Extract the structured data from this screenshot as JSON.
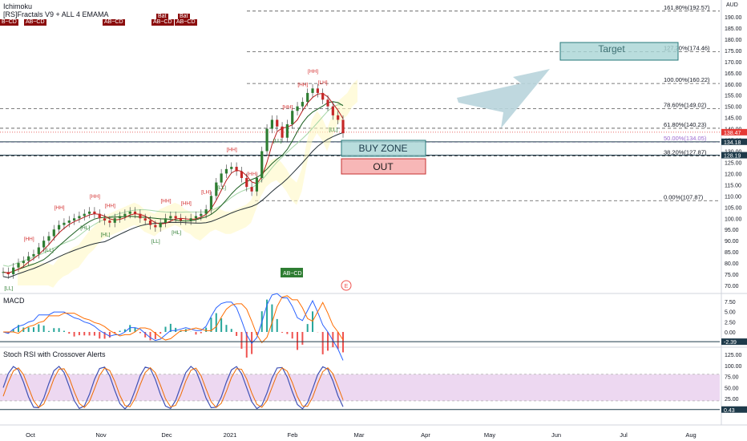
{
  "indicators": {
    "ichimoku": "Ichimoku",
    "fractals": "[RS]Fractals V9 + ALL 4 EMAMA",
    "macd": "MACD",
    "stoch": "Stoch RSI with Crossover Alerts"
  },
  "currency": "AUD",
  "pattern_tags": [
    "B~CD",
    "AB~CD",
    "AB~CD",
    "AB~CD",
    "AB~CD"
  ],
  "bat_tags": [
    "Bat",
    "Bat"
  ],
  "zones": {
    "target": "Target",
    "buy": "BUY ZONE",
    "out": "OUT"
  },
  "colors": {
    "fib_line": "#555555",
    "zone_teal": "#a8d4d4",
    "zone_teal_border": "#26787a",
    "out_fill": "#f7b7b7",
    "out_border": "#c53030",
    "arrow": "#b8d4dc",
    "candle_up": "#26a69a",
    "candle_down": "#ef5350",
    "price_tag": "#e53935",
    "stoch_band": "#e1bee7",
    "macd_line": "#2962ff",
    "signal_line": "#ff6d00"
  },
  "chart_data": [
    {
      "type": "line",
      "name": "price",
      "ylim": [
        68,
        195
      ],
      "yticks": [
        "70.00",
        "75.00",
        "80.00",
        "85.00",
        "90.00",
        "95.00",
        "100.00",
        "105.00",
        "110.00",
        "115.00",
        "120.00",
        "125.00",
        "130.00",
        "135.00",
        "140.00",
        "145.00",
        "150.00",
        "155.00",
        "160.00",
        "165.00",
        "170.00",
        "175.00",
        "180.00",
        "185.00",
        "190.00"
      ],
      "price_labels": [
        {
          "label": "138.47",
          "value": 138.47,
          "color": "#e53935"
        },
        {
          "label": "134.18",
          "value": 134.18,
          "color": "#1e3a4a"
        },
        {
          "label": "128.19",
          "value": 128.19,
          "color": "#1e3a4a"
        }
      ],
      "fib_levels": [
        {
          "label": "161.80%(192.57)",
          "value": 192.57
        },
        {
          "label": "127.20%(174.46)",
          "value": 174.46
        },
        {
          "label": "100.00%(160.22)",
          "value": 160.22
        },
        {
          "label": "78.60%(149.02)",
          "value": 149.02
        },
        {
          "label": "61.80%(140.23)",
          "value": 140.23
        },
        {
          "label": "50.00%(134.05)",
          "value": 134.05
        },
        {
          "label": "38.20%(127.87)",
          "value": 127.87
        },
        {
          "label": "0.00%(107.87)",
          "value": 107.87
        }
      ],
      "series": [
        {
          "name": "close",
          "values": [
            76,
            75,
            78,
            80,
            81,
            83,
            84,
            87,
            90,
            92,
            95,
            97,
            98,
            99,
            100,
            101,
            102,
            103,
            102,
            100,
            99,
            98,
            100,
            101,
            102,
            103,
            102,
            100,
            99,
            97,
            96,
            98,
            100,
            101,
            100,
            99,
            99,
            100,
            101,
            102,
            104,
            110,
            116,
            120,
            122,
            123,
            121,
            118,
            114,
            112,
            118,
            130,
            140,
            144,
            141,
            136,
            142,
            148,
            150,
            152,
            156,
            158,
            156,
            153,
            150,
            146,
            144,
            138
          ]
        }
      ],
      "fractal_labels_top": [
        "[HH]",
        "[HH]",
        "[HH]",
        "[HH]",
        "[HH]",
        "[HH]",
        "[LH]",
        "[HH]",
        "[HH]",
        "[HH]",
        "[HH]",
        "[HH]",
        "[LH]"
      ],
      "fractal_labels_bottom": [
        "[LL]",
        "[LL]",
        "[HL]",
        "[HL]",
        "[LL]",
        "[HL]",
        "[LL]",
        "[LL]",
        "[LL]"
      ]
    },
    {
      "type": "bar",
      "name": "MACD",
      "ylim": [
        -3.5,
        9
      ],
      "yticks": [
        "-2.50",
        "0.00",
        "2.50",
        "5.00",
        "7.50"
      ],
      "current_label": "-2.39",
      "current_value": -2.39
    },
    {
      "type": "line",
      "name": "Stoch RSI",
      "ylim": [
        -10,
        135
      ],
      "yticks": [
        "0.00",
        "25.00",
        "50.00",
        "75.00",
        "100.00",
        "125.00"
      ],
      "band": [
        20,
        80
      ],
      "current_label": "0.43",
      "current_value": 0.43
    }
  ],
  "x_axis": {
    "months": [
      "Oct",
      "Nov",
      "Dec",
      "2021",
      "Feb",
      "Mar",
      "Apr",
      "May",
      "Jun",
      "Jul",
      "Aug"
    ]
  },
  "pattern_badge": "AB~CD",
  "earnings_marker": "E"
}
